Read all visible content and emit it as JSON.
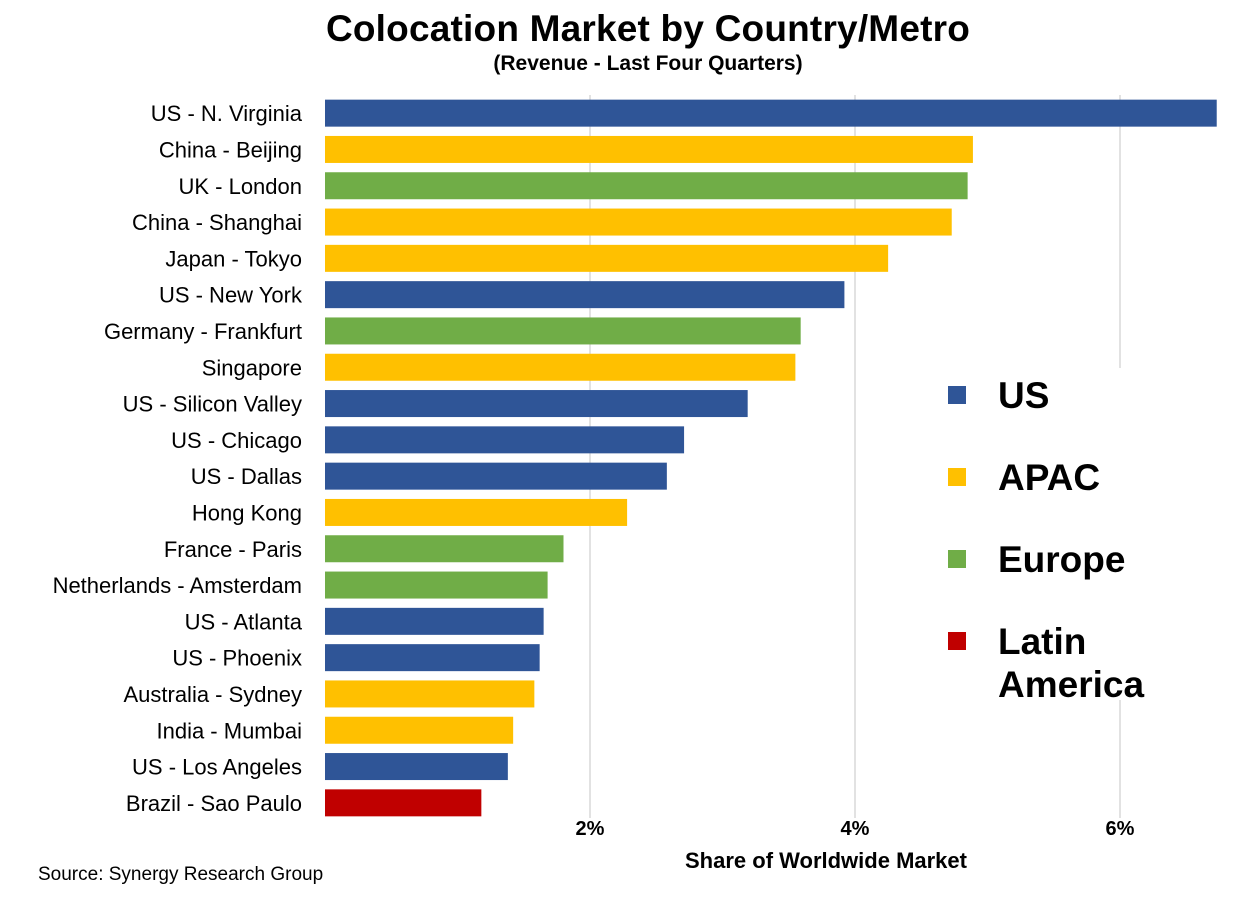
{
  "chart_data": {
    "type": "bar",
    "orientation": "horizontal",
    "title": "Colocation Market by Country/Metro",
    "subtitle": "(Revenue - Last Four Quarters)",
    "xlabel": "Share of Worldwide Market",
    "xlim": [
      0,
      6.7
    ],
    "xticks": [
      2,
      4,
      6
    ],
    "xtick_labels": [
      "2%",
      "4%",
      "6%"
    ],
    "grid": true,
    "legend_placement": "right",
    "categories": [
      "US - N. Virginia",
      "China - Beijing",
      "UK - London",
      "China - Shanghai",
      "Japan - Tokyo",
      "US - New York",
      "Germany - Frankfurt",
      "Singapore",
      "US - Silicon Valley",
      "US - Chicago",
      "US - Dallas",
      "Hong Kong",
      "France - Paris",
      "Netherlands - Amsterdam",
      "US - Atlanta",
      "US - Phoenix",
      "Australia - Sydney",
      "India - Mumbai",
      "US - Los Angeles",
      "Brazil - Sao Paulo"
    ],
    "values": [
      6.73,
      4.89,
      4.85,
      4.73,
      4.25,
      3.92,
      3.59,
      3.55,
      3.19,
      2.71,
      2.58,
      2.28,
      1.8,
      1.68,
      1.65,
      1.62,
      1.58,
      1.42,
      1.38,
      1.18
    ],
    "groups": [
      "US",
      "APAC",
      "Europe",
      "APAC",
      "APAC",
      "US",
      "Europe",
      "APAC",
      "US",
      "US",
      "US",
      "APAC",
      "Europe",
      "Europe",
      "US",
      "US",
      "APAC",
      "APAC",
      "US",
      "Latin America"
    ],
    "legend": [
      {
        "name": "US",
        "color": "#2F5597"
      },
      {
        "name": "APAC",
        "color": "#FFC000"
      },
      {
        "name": "Europe",
        "color": "#70AD47"
      },
      {
        "name": "Latin\nAmerica",
        "key": "Latin America",
        "color": "#C00000"
      }
    ]
  },
  "source": "Source: Synergy Research Group"
}
